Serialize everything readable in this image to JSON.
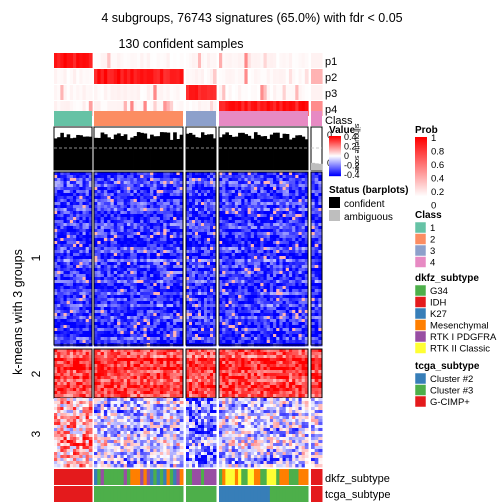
{
  "chart_data": {
    "type": "heatmap",
    "title": "4 subgroups, 76743 signatures (65.0%) with fdr < 0.05",
    "subtitle": "130 confident samples",
    "row_title": "k-means with 3 groups",
    "row_groups": [
      "1",
      "2",
      "3"
    ],
    "top_tracks": [
      "p1",
      "p2",
      "p3",
      "p4",
      "Class"
    ],
    "barplot_track": {
      "label": "Value",
      "axis_ticks": [
        "0",
        "0.2"
      ],
      "side_label": "silhouette score",
      "reference_line": 0.2
    },
    "bottom_tracks": [
      "dkfz_subtype",
      "tcga_subtype"
    ],
    "column_groups": [
      {
        "class": "1",
        "n": 12
      },
      {
        "class": "2",
        "n": 27
      },
      {
        "class": "3",
        "n": 10
      },
      {
        "class": "4",
        "n": 28
      },
      {
        "class": "4",
        "n": 3
      }
    ],
    "legends": {
      "value": {
        "title": "Value",
        "ticks": [
          "0.4",
          "0.2",
          "0",
          "-0.2",
          "-0.4"
        ],
        "colors": [
          "#ff0000",
          "#ffffff",
          "#0000ff"
        ]
      },
      "prob": {
        "title": "Prob",
        "ticks": [
          "1",
          "0.8",
          "0.6",
          "0.4",
          "0.2",
          "0"
        ],
        "colors": [
          "#ffffff",
          "#ff0000"
        ]
      },
      "status": {
        "title": "Status (barplots)",
        "items": [
          {
            "label": "confident",
            "color": "#000000"
          },
          {
            "label": "ambiguous",
            "color": "#bebebe"
          }
        ]
      },
      "class": {
        "title": "Class",
        "items": [
          {
            "label": "1",
            "color": "#66c2a5"
          },
          {
            "label": "2",
            "color": "#fc8d62"
          },
          {
            "label": "3",
            "color": "#8da0cb"
          },
          {
            "label": "4",
            "color": "#e78ac3"
          }
        ]
      },
      "dkfz_subtype": {
        "title": "dkfz_subtype",
        "items": [
          {
            "label": "G34",
            "color": "#4daf4a"
          },
          {
            "label": "IDH",
            "color": "#e41a1c"
          },
          {
            "label": "K27",
            "color": "#377eb8"
          },
          {
            "label": "Mesenchymal",
            "color": "#ff7f00"
          },
          {
            "label": "RTK I PDGFRA",
            "color": "#984ea3"
          },
          {
            "label": "RTK II Classic",
            "color": "#ffff33"
          }
        ]
      },
      "tcga_subtype": {
        "title": "tcga_subtype",
        "items": [
          {
            "label": "Cluster #2",
            "color": "#377eb8"
          },
          {
            "label": "Cluster #3",
            "color": "#4daf4a"
          },
          {
            "label": "G-CIMP+",
            "color": "#e41a1c"
          }
        ]
      }
    }
  }
}
